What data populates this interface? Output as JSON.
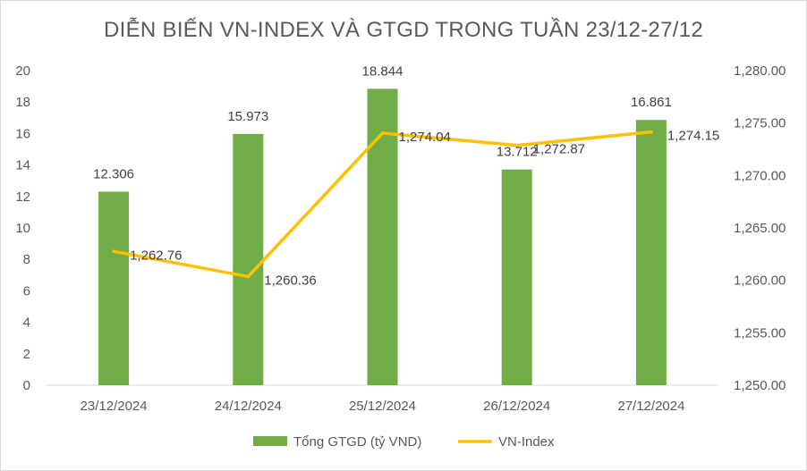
{
  "chart_data": {
    "type": "bar",
    "title": "DIỄN BIẾN VN-INDEX VÀ GTGD TRONG TUẦN 23/12-27/12",
    "categories": [
      "23/12/2024",
      "24/12/2024",
      "25/12/2024",
      "26/12/2024",
      "27/12/2024"
    ],
    "series": [
      {
        "name": "Tổng GTGD (tỷ VND)",
        "type": "bar",
        "axis": "left",
        "color": "#70ad47",
        "values": [
          12.306,
          15.973,
          18.844,
          13.712,
          16.861
        ],
        "labels": [
          "12.306",
          "15.973",
          "18.844",
          "13.712",
          "16.861"
        ]
      },
      {
        "name": "VN-Index",
        "type": "line",
        "axis": "right",
        "color": "#ffc000",
        "values": [
          1262.76,
          1260.36,
          1274.04,
          1272.87,
          1274.15
        ],
        "labels": [
          "1,262.76",
          "1,260.36",
          "1,274.04",
          "1,272.87",
          "1,274.15"
        ]
      }
    ],
    "y_left": {
      "ylim": [
        0,
        20
      ],
      "ticks": [
        "0",
        "2",
        "4",
        "6",
        "8",
        "10",
        "12",
        "14",
        "16",
        "18",
        "20"
      ]
    },
    "y_right": {
      "ylim": [
        1250,
        1280
      ],
      "ticks": [
        "1,250.00",
        "1,255.00",
        "1,260.00",
        "1,265.00",
        "1,270.00",
        "1,275.00",
        "1,280.00"
      ]
    },
    "grid": false,
    "legend": "bottom"
  }
}
